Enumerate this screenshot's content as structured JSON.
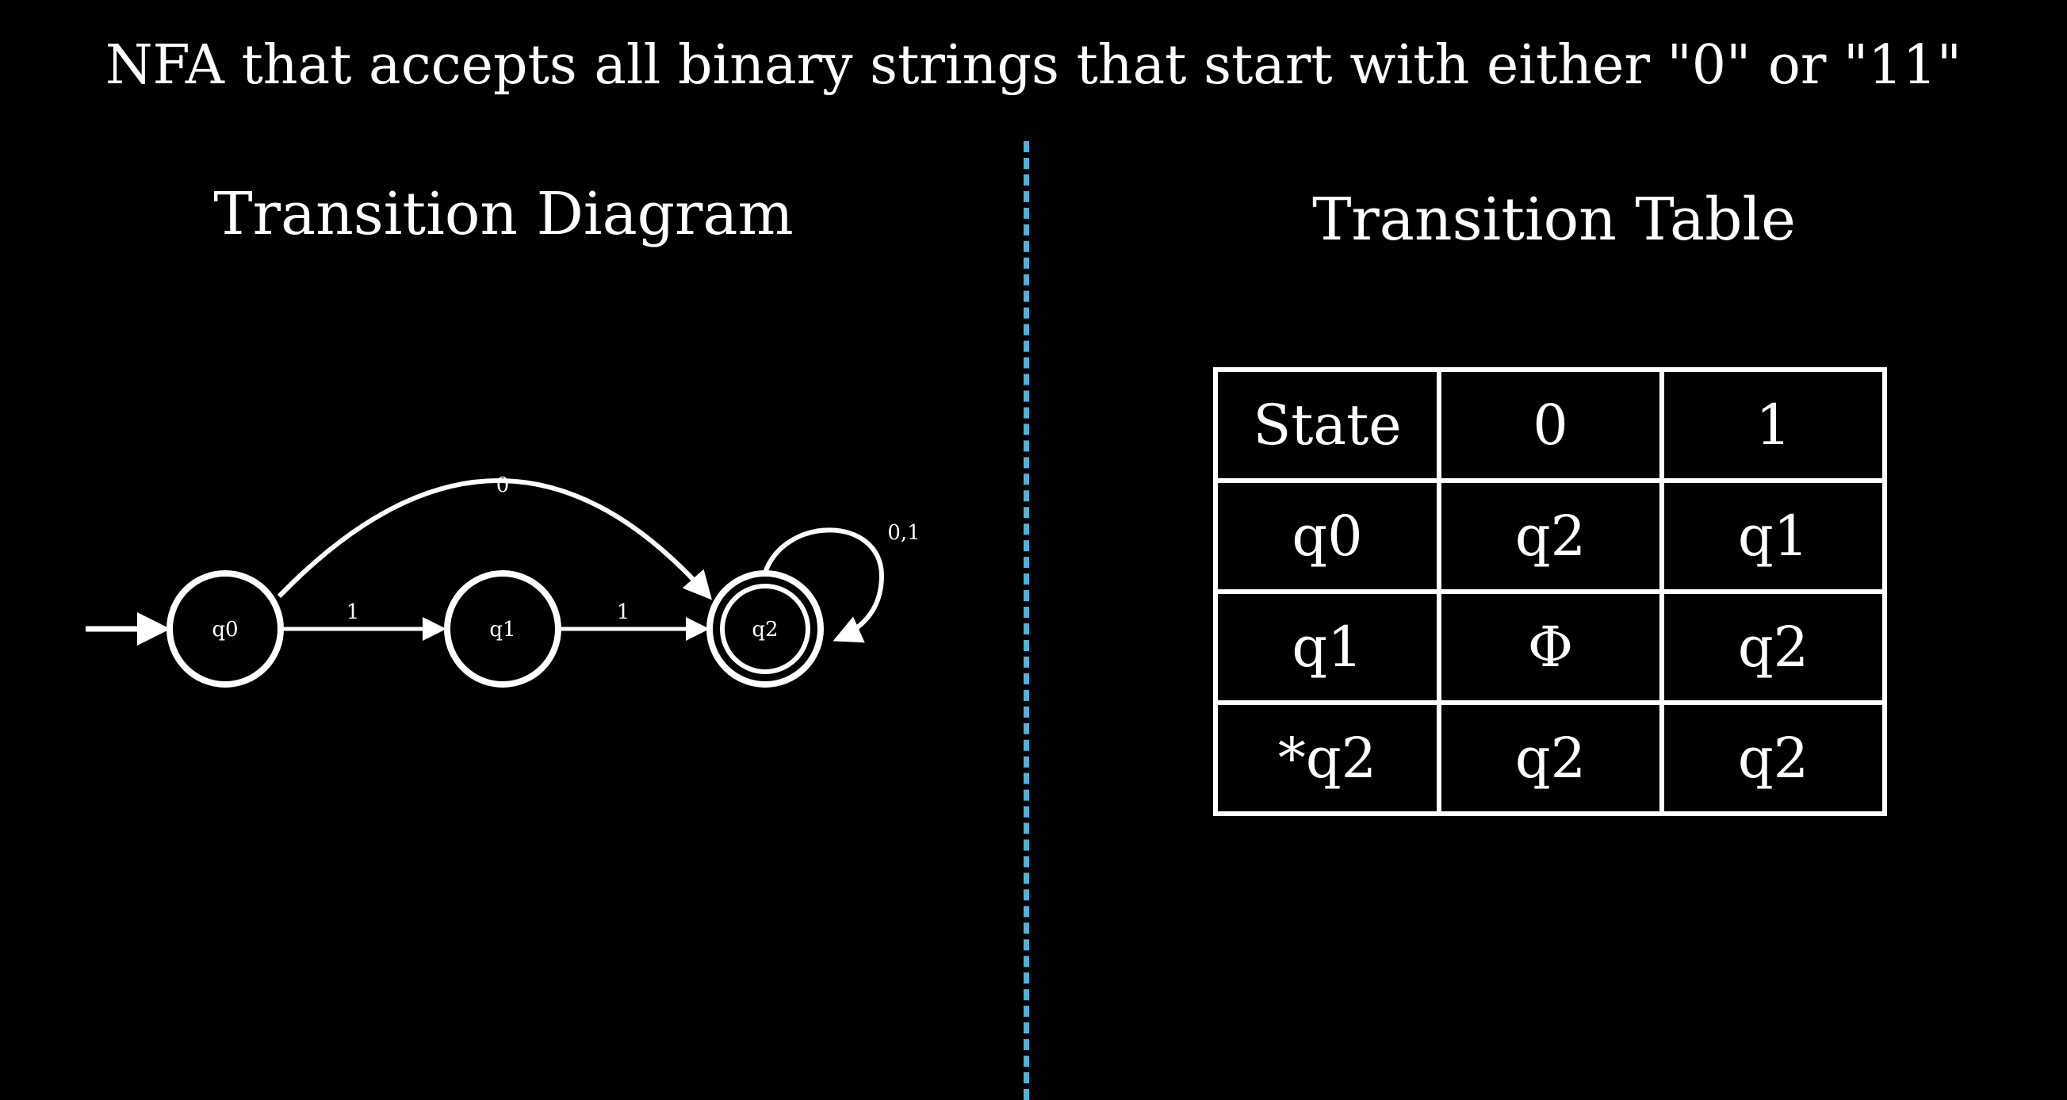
{
  "title": "NFA that accepts all binary strings that start with either \"0\" or \"11\"",
  "diagram": {
    "heading": "Transition Diagram",
    "states": [
      {
        "id": "q0",
        "label": "q0",
        "start": true,
        "accepting": false
      },
      {
        "id": "q1",
        "label": "q1",
        "start": false,
        "accepting": false
      },
      {
        "id": "q2",
        "label": "q2",
        "start": false,
        "accepting": true
      }
    ],
    "transitions": [
      {
        "from": "q0",
        "to": "q1",
        "label": "1"
      },
      {
        "from": "q1",
        "to": "q2",
        "label": "1"
      },
      {
        "from": "q0",
        "to": "q2",
        "label": "0"
      },
      {
        "from": "q2",
        "to": "q2",
        "label": "0,1"
      }
    ]
  },
  "table": {
    "heading": "Transition Table",
    "headers": [
      "State",
      "0",
      "1"
    ],
    "rows": [
      [
        "q0",
        "q2",
        "q1"
      ],
      [
        "q1",
        "Φ",
        "q2"
      ],
      [
        "*q2",
        "q2",
        "q2"
      ]
    ]
  },
  "colors": {
    "background": "#000000",
    "foreground": "#ffffff",
    "divider": "#4fb3d9"
  }
}
